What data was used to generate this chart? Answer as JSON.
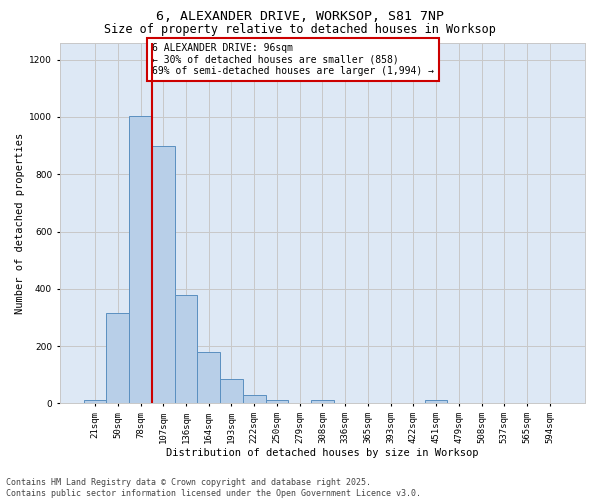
{
  "title1": "6, ALEXANDER DRIVE, WORKSOP, S81 7NP",
  "title2": "Size of property relative to detached houses in Worksop",
  "xlabel": "Distribution of detached houses by size in Worksop",
  "ylabel": "Number of detached properties",
  "categories": [
    "21sqm",
    "50sqm",
    "78sqm",
    "107sqm",
    "136sqm",
    "164sqm",
    "193sqm",
    "222sqm",
    "250sqm",
    "279sqm",
    "308sqm",
    "336sqm",
    "365sqm",
    "393sqm",
    "422sqm",
    "451sqm",
    "479sqm",
    "508sqm",
    "537sqm",
    "565sqm",
    "594sqm"
  ],
  "values": [
    12,
    315,
    1005,
    900,
    380,
    178,
    85,
    28,
    12,
    0,
    12,
    0,
    0,
    0,
    0,
    12,
    0,
    0,
    0,
    0,
    0
  ],
  "bar_color": "#b8cfe8",
  "bar_edge_color": "#5a8fc0",
  "vline_x_index": 2.5,
  "vline_color": "#cc0000",
  "annotation_text": "6 ALEXANDER DRIVE: 96sqm\n← 30% of detached houses are smaller (858)\n69% of semi-detached houses are larger (1,994) →",
  "annotation_box_color": "white",
  "annotation_box_edge_color": "#cc0000",
  "ylim": [
    0,
    1260
  ],
  "yticks": [
    0,
    200,
    400,
    600,
    800,
    1000,
    1200
  ],
  "grid_color": "#c8c8c8",
  "bg_color": "#dde8f5",
  "footer1": "Contains HM Land Registry data © Crown copyright and database right 2025.",
  "footer2": "Contains public sector information licensed under the Open Government Licence v3.0.",
  "title1_fontsize": 9.5,
  "title2_fontsize": 8.5,
  "xlabel_fontsize": 7.5,
  "ylabel_fontsize": 7.5,
  "tick_fontsize": 6.5,
  "annotation_fontsize": 7.0,
  "footer_fontsize": 6.0
}
